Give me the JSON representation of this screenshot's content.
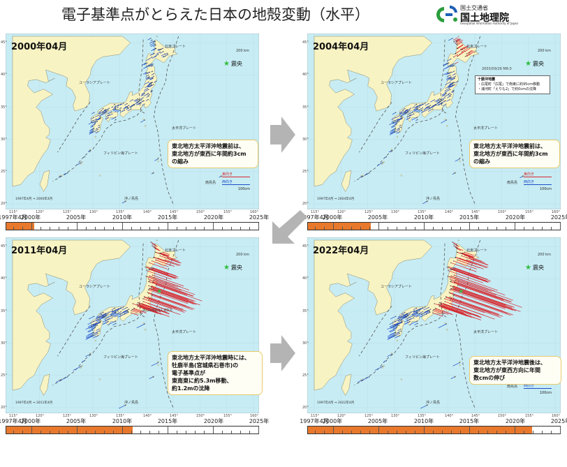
{
  "title": "電子基準点がとらえた日本の地殻変動（水平）",
  "logo": {
    "ministry": "国土交通省",
    "name": "国土地理院",
    "english": "Geospatial Information Authority of Japan"
  },
  "common": {
    "epicenter_label": "震央",
    "plates": {
      "north_american": "北米プレート",
      "eurasian": "ユーラシアプレート",
      "pacific": "太平洋プレート",
      "philippine": "フィリピン海プレート"
    },
    "islands": {
      "minamitori": "南鳥島",
      "okinotori": "沖ノ鳥島"
    },
    "legend_east": "東向き",
    "legend_west": "西向き",
    "legend_scale": "100cm",
    "map_scale": "200 km",
    "lon_labels": [
      "115°",
      "120°",
      "125°",
      "130°",
      "135°",
      "140°",
      "145°",
      "150°",
      "155°",
      "160°"
    ],
    "lat_labels": [
      "45°",
      "40°",
      "35°",
      "30°",
      "25°",
      "20°"
    ],
    "timeline_start": "1997年4月",
    "timeline_years": [
      "2000年",
      "2005年",
      "2010年",
      "2015年",
      "2020年",
      "2025年"
    ],
    "colors": {
      "sea": "#c7ecf4",
      "land": "#f8f3c3",
      "east": "#d7262d",
      "west": "#1f4fc9",
      "timeline": "#e8782c"
    }
  },
  "panels": [
    {
      "date": "2000年04月",
      "range": "1997年4月 ⇒ 2000年4月",
      "callout": [
        "東北地方太平洋沖地震前は、",
        "東北地方が東西に年間約3cm",
        "の縮み"
      ],
      "progress": 0.11,
      "phase": "pre"
    },
    {
      "date": "2004年04月",
      "range": "1997年4月 ⇒ 2004年4月",
      "callout": [
        "東北地方太平洋沖地震前は、",
        "東北地方が東西に年間約3cm",
        "の縮み"
      ],
      "progress": 0.25,
      "phase": "pre2",
      "info_box": [
        "十勝沖地震",
        "・広尾町「広尾」で南東に約95cm移動",
        "・浦河町「えりも2」で約0cmの沈降"
      ],
      "event_label": "2003/09/26 M8.0"
    },
    {
      "date": "2011年04月",
      "range": "1997年4月 ⇒ 2011年4月",
      "callout": [
        "東北地方太平洋沖地震時には、",
        "牡鹿半島(宮城県石巻市)の",
        "電子基準点が",
        "東南東に約5.3m移動、",
        "約1.2mの沈降"
      ],
      "progress": 0.5,
      "phase": "quake",
      "event_label": "2011/03/11 M9.0"
    },
    {
      "date": "2022年04月",
      "range": "1997年4月 ⇒ 2022年4月",
      "callout": [
        "東北地方太平洋沖地震後は、",
        "東北地方が東西方向に年間",
        "数cmの伸び"
      ],
      "progress": 0.89,
      "phase": "post"
    }
  ]
}
